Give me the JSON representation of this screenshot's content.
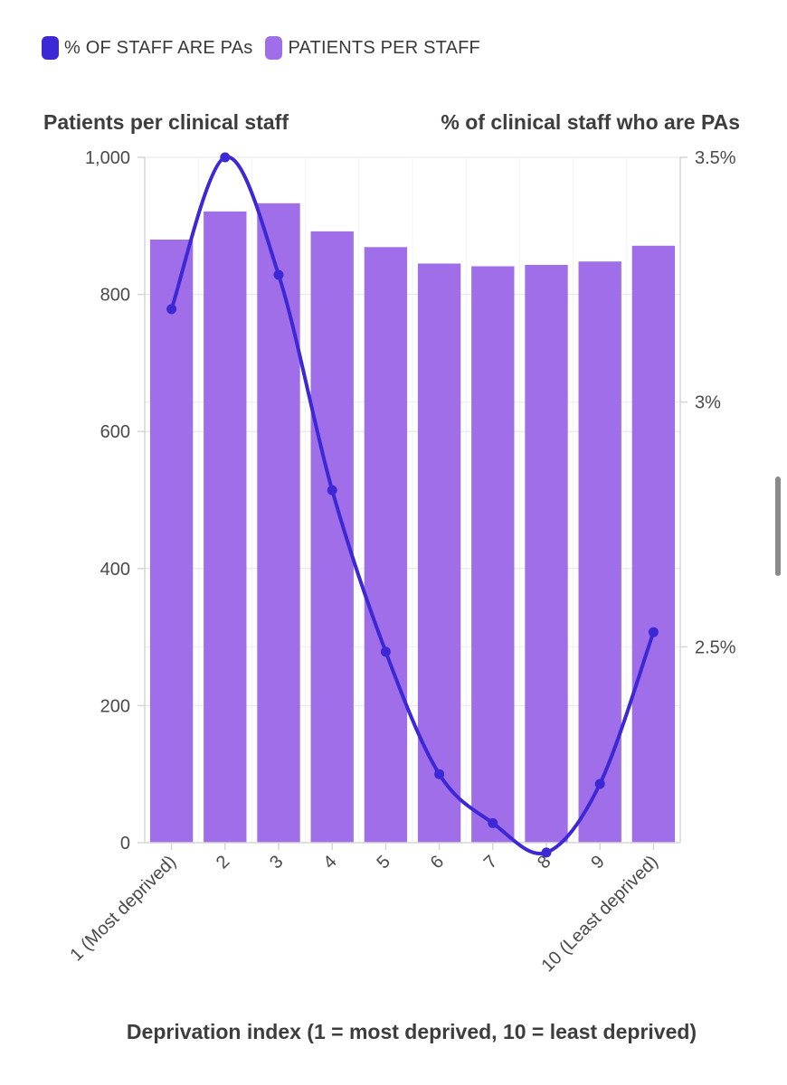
{
  "legend": {
    "items": [
      {
        "label": "% OF STAFF ARE PAs",
        "color": "#3d28d6"
      },
      {
        "label": "PATIENTS PER STAFF",
        "color": "#9f6ee8"
      }
    ]
  },
  "chart_data": {
    "type": "bar+line",
    "categories": [
      "1 (Most deprived)",
      "2",
      "3",
      "4",
      "5",
      "6",
      "7",
      "8",
      "9",
      "10 (Least deprived)"
    ],
    "series": [
      {
        "name": "PATIENTS PER STAFF",
        "type": "bar",
        "axis": "left",
        "color": "#9f6ee8",
        "values": [
          880,
          921,
          933,
          892,
          869,
          845,
          841,
          843,
          848,
          871
        ]
      },
      {
        "name": "% OF STAFF ARE PAs",
        "type": "line",
        "axis": "right",
        "color": "#3d28d6",
        "values": [
          3.19,
          3.5,
          3.26,
          2.82,
          2.49,
          2.24,
          2.14,
          2.08,
          2.22,
          2.53
        ]
      }
    ],
    "left_axis": {
      "title": "Patients per clinical staff",
      "ylim": [
        0,
        1000
      ],
      "ticks": [
        0,
        200,
        400,
        600,
        800,
        1000
      ],
      "tick_labels": [
        "0",
        "200",
        "400",
        "600",
        "800",
        "1,000"
      ]
    },
    "right_axis": {
      "title": "% of clinical staff who are PAs",
      "ylim": [
        2.1,
        3.5
      ],
      "ticks": [
        2.5,
        3.0,
        3.5
      ],
      "tick_labels": [
        "2.5%",
        "3%",
        "3.5%"
      ]
    },
    "xlabel": "Deprivation index (1 = most deprived, 10 = least deprived)",
    "grid": true
  }
}
